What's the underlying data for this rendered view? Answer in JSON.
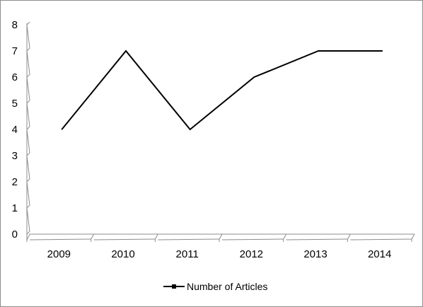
{
  "chart_data": {
    "type": "line",
    "title": "",
    "xlabel": "",
    "ylabel": "",
    "categories": [
      "2009",
      "2010",
      "2011",
      "2012",
      "2013",
      "2014"
    ],
    "series": [
      {
        "name": "Number of Articles",
        "values": [
          4,
          7,
          4,
          6,
          7,
          7
        ],
        "color": "#000000"
      }
    ],
    "ylim": [
      0,
      8
    ],
    "yticks": [
      0,
      1,
      2,
      3,
      4,
      5,
      6,
      7,
      8
    ],
    "grid": false,
    "legend": "bottom",
    "axis_style": "3d-perspective"
  },
  "colors": {
    "axis": "#8c8c8c",
    "line": "#000000",
    "background": "#ffffff"
  }
}
